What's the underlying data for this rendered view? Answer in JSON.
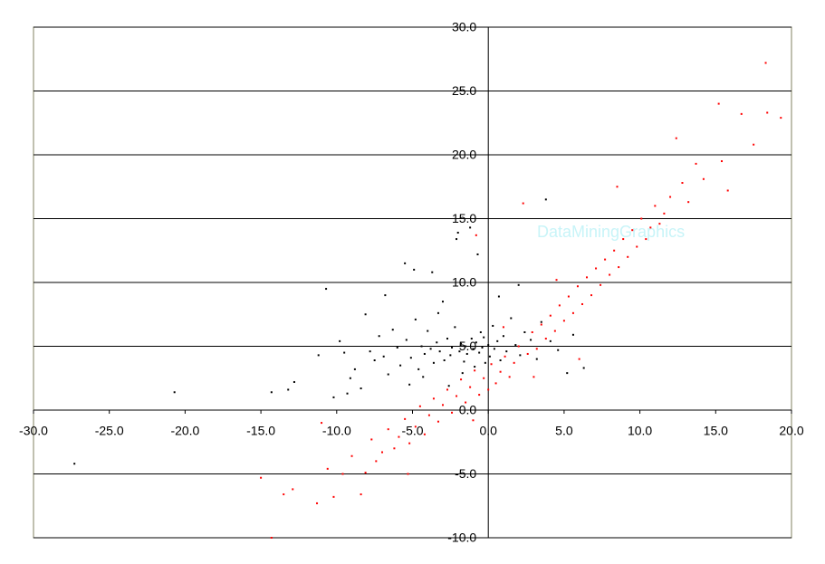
{
  "chart_data": {
    "type": "scatter",
    "annotation": "DataMiningGraphics",
    "xlim": [
      -30,
      20
    ],
    "ylim": [
      -10,
      30
    ],
    "xticks": [
      {
        "value": -30,
        "label": "-30.0"
      },
      {
        "value": -25,
        "label": "-25.0"
      },
      {
        "value": -20,
        "label": "-20.0"
      },
      {
        "value": -15,
        "label": "-15.0"
      },
      {
        "value": -10,
        "label": "-10.0"
      },
      {
        "value": -5,
        "label": "-5.0"
      },
      {
        "value": 0,
        "label": "0.0"
      },
      {
        "value": 5,
        "label": "5.0"
      },
      {
        "value": 10,
        "label": "10.0"
      },
      {
        "value": 15,
        "label": "15.0"
      },
      {
        "value": 20,
        "label": "20.0"
      }
    ],
    "yticks": [
      {
        "value": -10,
        "label": "-10.0"
      },
      {
        "value": -5,
        "label": "-5.0"
      },
      {
        "value": 0,
        "label": "0.0"
      },
      {
        "value": 5,
        "label": "5.0"
      },
      {
        "value": 10,
        "label": "10.0"
      },
      {
        "value": 15,
        "label": "15.0"
      },
      {
        "value": 20,
        "label": "20.0"
      },
      {
        "value": 25,
        "label": "25.0"
      },
      {
        "value": 30,
        "label": "30.0"
      }
    ],
    "grid": true,
    "series": [
      {
        "color": "#000000",
        "x": [
          -27.3,
          -20.7,
          -14.3,
          -13.2,
          -12.8,
          -10.7,
          -10.2,
          -9.8,
          -9.5,
          -9.1,
          -8.8,
          -8.4,
          -8.1,
          -7.8,
          -7.5,
          -7.2,
          -6.9,
          -6.6,
          -6.3,
          -6.0,
          -5.8,
          -5.5,
          -5.4,
          -5.1,
          -4.9,
          -4.8,
          -4.6,
          -4.4,
          -4.2,
          -4.0,
          -3.8,
          -3.7,
          -3.6,
          -3.4,
          -3.2,
          -3.0,
          -2.9,
          -2.7,
          -2.5,
          -2.4,
          -2.2,
          -2.1,
          -2.0,
          -1.9,
          -1.8,
          -1.6,
          -1.5,
          -1.4,
          -1.2,
          -1.1,
          -1.0,
          -0.9,
          -0.8,
          -0.6,
          -0.5,
          -0.4,
          -0.3,
          -0.2,
          0.0,
          0.1,
          0.3,
          0.4,
          0.6,
          0.8,
          1.0,
          1.2,
          1.5,
          1.8,
          2.1,
          2.4,
          2.8,
          3.2,
          3.5,
          3.8,
          4.1,
          4.6,
          5.2,
          5.6,
          6.3,
          -6.8,
          -5.2,
          -3.3,
          -1.7,
          0.7,
          -9.3,
          -11.2,
          -4.3,
          -2.6,
          2.0,
          -0.7
        ],
        "values": [
          -4.2,
          1.4,
          1.4,
          1.6,
          2.2,
          9.5,
          1.0,
          5.4,
          4.5,
          2.5,
          3.2,
          1.7,
          7.5,
          4.6,
          3.9,
          5.8,
          4.2,
          2.8,
          6.3,
          4.9,
          3.5,
          11.5,
          5.5,
          4.1,
          11.0,
          7.1,
          3.2,
          5.0,
          4.4,
          6.2,
          4.8,
          10.8,
          3.7,
          5.3,
          4.6,
          8.5,
          3.9,
          5.6,
          4.3,
          4.9,
          6.5,
          13.4,
          13.9,
          4.6,
          5.2,
          3.8,
          5.0,
          4.4,
          14.3,
          5.6,
          4.8,
          3.4,
          5.3,
          4.5,
          6.1,
          4.9,
          5.7,
          3.7,
          5.1,
          4.2,
          6.6,
          4.8,
          5.4,
          3.9,
          5.8,
          4.6,
          7.2,
          5.1,
          4.3,
          6.1,
          5.5,
          4.0,
          6.9,
          16.5,
          5.4,
          4.7,
          2.9,
          5.9,
          3.3,
          9.0,
          2.0,
          7.6,
          2.9,
          8.9,
          1.3,
          4.3,
          2.6,
          1.9,
          9.8,
          12.2
        ]
      },
      {
        "color": "#ff0000",
        "x": [
          -14.3,
          -15.0,
          -13.5,
          -12.9,
          -11.3,
          -10.6,
          -10.2,
          -9.6,
          -9.0,
          -8.4,
          -8.1,
          -7.7,
          -7.4,
          -7.0,
          -6.6,
          -6.2,
          -5.9,
          -5.5,
          -5.2,
          -4.8,
          -4.5,
          -4.2,
          -3.9,
          -3.6,
          -3.3,
          -3.0,
          -2.7,
          -2.4,
          -2.1,
          -1.8,
          -1.5,
          -1.2,
          -0.9,
          -0.6,
          -0.3,
          0.0,
          0.2,
          0.5,
          0.8,
          1.1,
          1.4,
          1.7,
          2.0,
          2.3,
          2.6,
          2.9,
          3.2,
          3.5,
          3.8,
          4.1,
          4.4,
          4.7,
          5.0,
          5.3,
          5.6,
          5.9,
          6.2,
          6.5,
          6.8,
          7.1,
          7.4,
          7.7,
          8.0,
          8.3,
          8.6,
          8.9,
          9.2,
          9.5,
          9.8,
          10.1,
          10.4,
          10.7,
          11.0,
          11.3,
          11.6,
          12.0,
          12.4,
          12.8,
          13.2,
          13.7,
          14.2,
          15.2,
          15.4,
          15.8,
          16.7,
          17.5,
          18.3,
          18.4,
          19.3,
          -0.8,
          -11.0,
          -5.3,
          -1.0,
          1.0,
          3.0,
          6.0,
          4.5,
          8.5
        ],
        "values": [
          -10.0,
          -5.3,
          -6.6,
          -6.2,
          -7.3,
          -4.6,
          -6.8,
          -5.0,
          -3.6,
          -6.6,
          -4.9,
          -2.3,
          -4.0,
          -3.3,
          -1.5,
          -3.0,
          -2.1,
          -0.7,
          -2.6,
          -1.3,
          0.3,
          -1.9,
          -0.4,
          0.9,
          -0.9,
          0.4,
          1.6,
          -0.2,
          1.1,
          2.4,
          0.6,
          1.8,
          3.1,
          1.2,
          2.5,
          1.6,
          3.6,
          2.1,
          3.0,
          4.2,
          2.6,
          3.7,
          5.0,
          16.2,
          4.4,
          6.1,
          4.8,
          6.7,
          5.6,
          7.4,
          6.2,
          8.2,
          7.0,
          8.9,
          7.6,
          9.7,
          8.3,
          10.4,
          9.0,
          11.1,
          9.8,
          11.8,
          10.6,
          12.5,
          11.2,
          13.4,
          12.0,
          14.1,
          12.8,
          15.0,
          13.4,
          14.3,
          16.0,
          14.6,
          15.4,
          16.7,
          21.3,
          17.8,
          16.3,
          19.3,
          18.1,
          24.0,
          19.5,
          17.2,
          23.2,
          20.8,
          27.2,
          23.3,
          22.9,
          13.7,
          -1.0,
          -5.0,
          -0.8,
          6.5,
          2.6,
          4.0,
          10.2,
          17.5
        ]
      }
    ]
  }
}
